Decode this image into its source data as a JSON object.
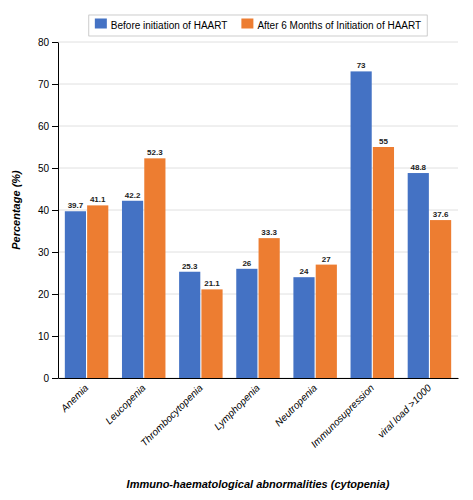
{
  "chart_data": {
    "type": "bar",
    "xlabel": "Immuno-haematological abnormalities (cytopenia)",
    "ylabel": "Percentage (%)",
    "categories": [
      "Anemia",
      "Leucopenia",
      "Thrombocytopenia",
      "Lymphopenia",
      "Neutropenia",
      "Immunosupression",
      "viral load >1000"
    ],
    "series": [
      {
        "name": "Before initiation of HAART",
        "color": "#4472C4",
        "values": [
          39.7,
          42.2,
          25.3,
          26,
          24,
          73,
          48.8
        ]
      },
      {
        "name": "After 6 Months of Initiation of HAART",
        "color": "#ED7D31",
        "values": [
          41.1,
          52.3,
          21.1,
          33.3,
          27,
          55,
          37.6
        ]
      }
    ],
    "ylim": [
      0,
      80
    ],
    "yticks": [
      0,
      10,
      20,
      30,
      40,
      50,
      60,
      70,
      80
    ],
    "grid": true,
    "legend": "top",
    "data_labels": true
  }
}
